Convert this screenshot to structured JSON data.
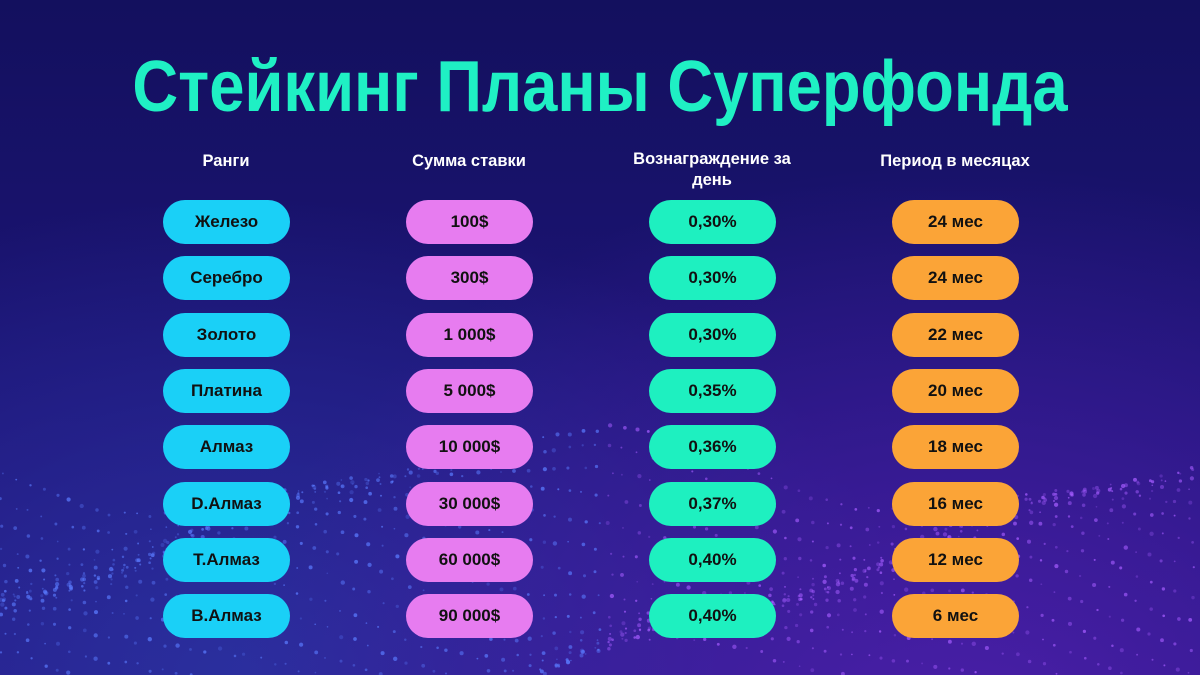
{
  "title": "Стейкинг Планы Суперфонда",
  "headers": {
    "rank": "Ранги",
    "amount": "Сумма ставки",
    "reward": "Вознаграждение за день",
    "period": "Период в месяцах"
  },
  "colors": {
    "title": "#1ff0c4",
    "rank": "#1ad0f7",
    "amount": "#e77cf0",
    "reward": "#1ef0c0",
    "period": "#fba437"
  },
  "rows": [
    {
      "rank": "Железо",
      "amount": "100$",
      "reward": "0,30%",
      "period": "24 мес"
    },
    {
      "rank": "Серебро",
      "amount": "300$",
      "reward": "0,30%",
      "period": "24 мес"
    },
    {
      "rank": "Золото",
      "amount": "1 000$",
      "reward": "0,30%",
      "period": "22 мес"
    },
    {
      "rank": "Платина",
      "amount": "5 000$",
      "reward": "0,35%",
      "period": "20 мес"
    },
    {
      "rank": "Алмаз",
      "amount": "10 000$",
      "reward": "0,36%",
      "period": "18 мес"
    },
    {
      "rank": "D.Алмаз",
      "amount": "30 000$",
      "reward": "0,37%",
      "period": "16 мес"
    },
    {
      "rank": "T.Алмаз",
      "amount": "60 000$",
      "reward": "0,40%",
      "period": "12 мес"
    },
    {
      "rank": "B.Алмаз",
      "amount": "90 000$",
      "reward": "0,40%",
      "period": "6 мес"
    }
  ]
}
